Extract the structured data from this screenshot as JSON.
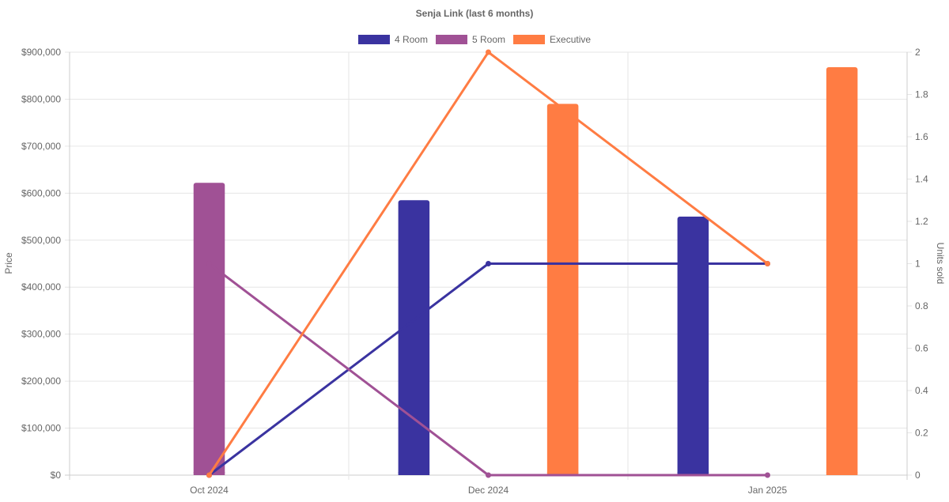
{
  "chart_data": {
    "type": "bar",
    "title": "Senja Link (last 6 months)",
    "categories": [
      "Oct 2024",
      "Dec 2024",
      "Jan 2025"
    ],
    "legend_placement": "top-center",
    "grid": true,
    "y_left": {
      "label": "Price",
      "lim": [
        0,
        900000
      ],
      "ticks": [
        "$0",
        "$100,000",
        "$200,000",
        "$300,000",
        "$400,000",
        "$500,000",
        "$600,000",
        "$700,000",
        "$800,000",
        "$900,000"
      ]
    },
    "y_right": {
      "label": "Units sold",
      "lim": [
        0,
        2
      ],
      "ticks": [
        "0",
        "0.2",
        "0.4",
        "0.6",
        "0.8",
        "1",
        "1.2",
        "1.4",
        "1.6",
        "1.8",
        "2"
      ]
    },
    "series": [
      {
        "name": "4 Room",
        "color": "#3a33a0",
        "price": [
          null,
          585000,
          550000
        ],
        "units": [
          0,
          1,
          1
        ]
      },
      {
        "name": "5 Room",
        "color": "#a05195",
        "price": [
          622000,
          null,
          null
        ],
        "units": [
          1,
          0,
          0
        ]
      },
      {
        "name": "Executive",
        "color": "#ff7c43",
        "price": [
          null,
          790000,
          868000
        ],
        "units": [
          0,
          2,
          1
        ]
      }
    ]
  }
}
